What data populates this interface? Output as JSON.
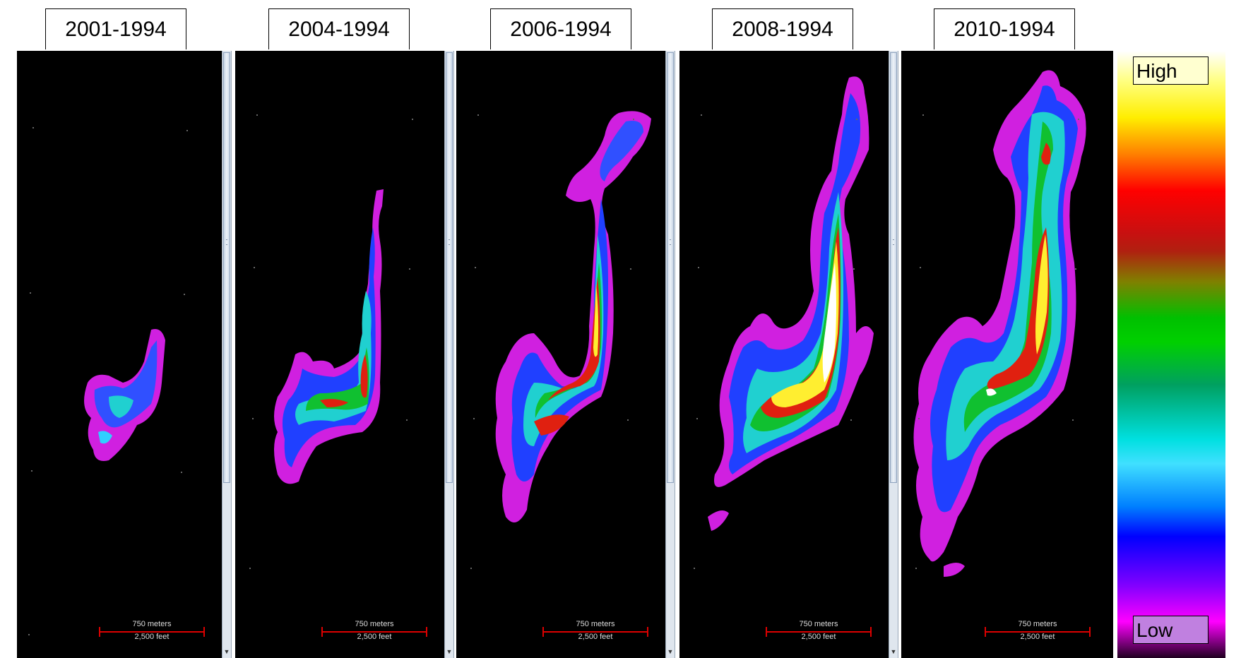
{
  "panels": [
    {
      "label": "2001-1994",
      "scale_m": "750 meters",
      "scale_ft": "2,500 feet"
    },
    {
      "label": "2004-1994",
      "scale_m": "750 meters",
      "scale_ft": "2,500 feet"
    },
    {
      "label": "2006-1994",
      "scale_m": "750 meters",
      "scale_ft": "2,500 feet"
    },
    {
      "label": "2008-1994",
      "scale_m": "750 meters",
      "scale_ft": "2,500 feet"
    },
    {
      "label": "2010-1994",
      "scale_m": "750 meters",
      "scale_ft": "2,500 feet"
    }
  ],
  "legend": {
    "high": "High",
    "low": "Low"
  },
  "colors": {
    "background": "#000000",
    "scale_bar": "#dd0000",
    "legend_high_box": "#ffffd0",
    "legend_low_box": "#c080e0"
  }
}
